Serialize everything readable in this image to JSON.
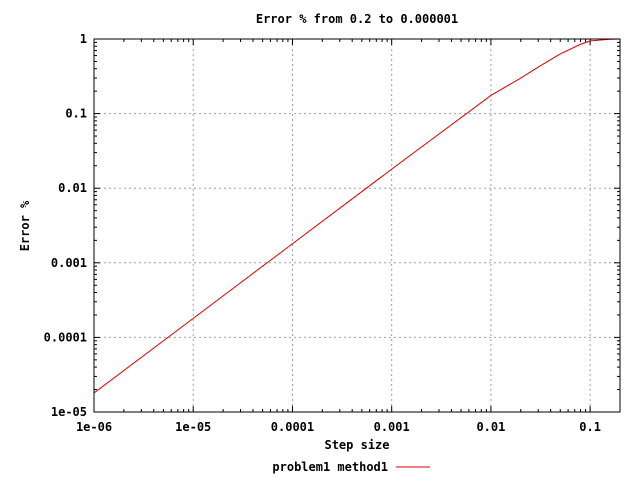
{
  "chart_data": {
    "type": "line",
    "title": "Error % from 0.2 to 0.000001",
    "xlabel": "Step size",
    "ylabel": "Error %",
    "x_scale": "log",
    "y_scale": "log",
    "xlim": [
      1e-06,
      0.2
    ],
    "ylim": [
      1e-05,
      1
    ],
    "grid": true,
    "legend": "bottom-center",
    "x_ticks": [
      "1e-06",
      "1e-05",
      "0.0001",
      "0.001",
      "0.01",
      "0.1"
    ],
    "y_ticks": [
      "1e-05",
      "0.0001",
      "0.001",
      "0.01",
      "0.1",
      "1"
    ],
    "series": [
      {
        "name": "problem1 method1",
        "color": "#e00000",
        "x": [
          1e-06,
          1e-05,
          0.0001,
          0.001,
          0.01,
          0.02,
          0.03,
          0.05,
          0.08,
          0.1,
          0.15,
          0.2
        ],
        "y": [
          1.8e-05,
          0.00018,
          0.0018,
          0.018,
          0.175,
          0.3,
          0.42,
          0.63,
          0.85,
          0.94,
          0.99,
          1.0
        ]
      }
    ]
  }
}
